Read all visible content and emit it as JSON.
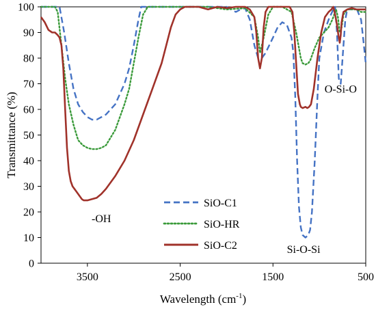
{
  "chart_data": {
    "type": "line",
    "title": "",
    "xlabel": "Wavelength (cm",
    "xlabel_sup": "-1",
    "xlabel_close": ")",
    "ylabel": "Transmittance (%)",
    "xlim": [
      4000,
      500
    ],
    "ylim": [
      0,
      100
    ],
    "x_reversed": true,
    "grid": false,
    "x_ticks": [
      3500,
      2500,
      1500,
      500
    ],
    "y_ticks": [
      0,
      10,
      20,
      30,
      40,
      50,
      60,
      70,
      80,
      90,
      100
    ],
    "legend_position": "center",
    "series": [
      {
        "name": "SiO-C1",
        "color": "#4472C4",
        "style": "dashed",
        "points": [
          [
            4000,
            100
          ],
          [
            3900,
            100
          ],
          [
            3800,
            100
          ],
          [
            3750,
            90
          ],
          [
            3700,
            78
          ],
          [
            3650,
            68
          ],
          [
            3600,
            62
          ],
          [
            3550,
            59
          ],
          [
            3500,
            57
          ],
          [
            3450,
            56
          ],
          [
            3400,
            56
          ],
          [
            3350,
            57
          ],
          [
            3300,
            58
          ],
          [
            3200,
            62
          ],
          [
            3100,
            70
          ],
          [
            3050,
            76
          ],
          [
            3000,
            85
          ],
          [
            2950,
            95
          ],
          [
            2920,
            100
          ],
          [
            2500,
            100
          ],
          [
            2000,
            100
          ],
          [
            1900,
            98
          ],
          [
            1850,
            99
          ],
          [
            1800,
            99.5
          ],
          [
            1750,
            95
          ],
          [
            1700,
            85
          ],
          [
            1660,
            80
          ],
          [
            1620,
            80
          ],
          [
            1580,
            82
          ],
          [
            1500,
            88
          ],
          [
            1450,
            92
          ],
          [
            1400,
            94
          ],
          [
            1350,
            93
          ],
          [
            1300,
            88
          ],
          [
            1280,
            82
          ],
          [
            1260,
            65
          ],
          [
            1240,
            40
          ],
          [
            1220,
            22
          ],
          [
            1200,
            14
          ],
          [
            1180,
            11
          ],
          [
            1150,
            10
          ],
          [
            1120,
            11
          ],
          [
            1100,
            13
          ],
          [
            1080,
            20
          ],
          [
            1050,
            40
          ],
          [
            1020,
            65
          ],
          [
            1000,
            80
          ],
          [
            950,
            90
          ],
          [
            900,
            95
          ],
          [
            850,
            99
          ],
          [
            830,
            100
          ],
          [
            810,
            90
          ],
          [
            790,
            72
          ],
          [
            770,
            70
          ],
          [
            750,
            80
          ],
          [
            720,
            95
          ],
          [
            700,
            99
          ],
          [
            650,
            99
          ],
          [
            600,
            99.5
          ],
          [
            550,
            95
          ],
          [
            520,
            85
          ],
          [
            500,
            78
          ]
        ]
      },
      {
        "name": "SiO-HR",
        "color": "#3A9A3A",
        "style": "dotted",
        "points": [
          [
            4000,
            100
          ],
          [
            3850,
            100
          ],
          [
            3820,
            98
          ],
          [
            3780,
            85
          ],
          [
            3740,
            72
          ],
          [
            3700,
            62
          ],
          [
            3650,
            54
          ],
          [
            3600,
            48
          ],
          [
            3550,
            46
          ],
          [
            3500,
            45
          ],
          [
            3450,
            44.5
          ],
          [
            3400,
            44.5
          ],
          [
            3350,
            45
          ],
          [
            3300,
            46
          ],
          [
            3200,
            52
          ],
          [
            3100,
            62
          ],
          [
            3050,
            68
          ],
          [
            3000,
            78
          ],
          [
            2950,
            88
          ],
          [
            2900,
            97
          ],
          [
            2850,
            100
          ],
          [
            2500,
            100
          ],
          [
            2200,
            100
          ],
          [
            2000,
            99
          ],
          [
            1800,
            99.5
          ],
          [
            1700,
            96
          ],
          [
            1660,
            88
          ],
          [
            1640,
            82
          ],
          [
            1600,
            88
          ],
          [
            1550,
            97
          ],
          [
            1500,
            100
          ],
          [
            1400,
            100
          ],
          [
            1300,
            98
          ],
          [
            1250,
            90
          ],
          [
            1200,
            80
          ],
          [
            1180,
            78
          ],
          [
            1150,
            77.5
          ],
          [
            1120,
            78
          ],
          [
            1100,
            79
          ],
          [
            1050,
            84
          ],
          [
            1000,
            88
          ],
          [
            950,
            90
          ],
          [
            900,
            92
          ],
          [
            860,
            95
          ],
          [
            820,
            99
          ],
          [
            800,
            96
          ],
          [
            780,
            90
          ],
          [
            760,
            92
          ],
          [
            740,
            97
          ],
          [
            700,
            99
          ],
          [
            650,
            99
          ],
          [
            600,
            99
          ],
          [
            550,
            98
          ],
          [
            500,
            98
          ]
        ]
      },
      {
        "name": "SiO-C2",
        "color": "#A0322A",
        "style": "solid",
        "points": [
          [
            4000,
            96
          ],
          [
            3960,
            94
          ],
          [
            3920,
            91
          ],
          [
            3880,
            90
          ],
          [
            3850,
            90
          ],
          [
            3820,
            89
          ],
          [
            3800,
            88
          ],
          [
            3780,
            85
          ],
          [
            3760,
            76
          ],
          [
            3740,
            60
          ],
          [
            3720,
            45
          ],
          [
            3700,
            36
          ],
          [
            3680,
            32
          ],
          [
            3660,
            30
          ],
          [
            3640,
            29
          ],
          [
            3620,
            28
          ],
          [
            3600,
            27
          ],
          [
            3580,
            26
          ],
          [
            3560,
            25
          ],
          [
            3540,
            24.5
          ],
          [
            3500,
            24.5
          ],
          [
            3450,
            25
          ],
          [
            3400,
            25.5
          ],
          [
            3350,
            27
          ],
          [
            3300,
            29
          ],
          [
            3200,
            34
          ],
          [
            3100,
            40
          ],
          [
            3000,
            48
          ],
          [
            2900,
            58
          ],
          [
            2800,
            68
          ],
          [
            2700,
            78
          ],
          [
            2650,
            85
          ],
          [
            2600,
            92
          ],
          [
            2550,
            97
          ],
          [
            2500,
            99
          ],
          [
            2450,
            100
          ],
          [
            2300,
            100
          ],
          [
            2200,
            99
          ],
          [
            2100,
            100
          ],
          [
            2000,
            99.5
          ],
          [
            1900,
            100
          ],
          [
            1800,
            100
          ],
          [
            1750,
            99
          ],
          [
            1700,
            96
          ],
          [
            1680,
            90
          ],
          [
            1660,
            80
          ],
          [
            1640,
            76
          ],
          [
            1620,
            80
          ],
          [
            1600,
            92
          ],
          [
            1580,
            98
          ],
          [
            1550,
            100
          ],
          [
            1400,
            100
          ],
          [
            1320,
            100
          ],
          [
            1290,
            98
          ],
          [
            1270,
            90
          ],
          [
            1250,
            78
          ],
          [
            1230,
            66
          ],
          [
            1210,
            62
          ],
          [
            1200,
            61
          ],
          [
            1180,
            60.5
          ],
          [
            1150,
            61
          ],
          [
            1130,
            60.5
          ],
          [
            1110,
            61
          ],
          [
            1090,
            62
          ],
          [
            1060,
            68
          ],
          [
            1020,
            80
          ],
          [
            980,
            90
          ],
          [
            940,
            96
          ],
          [
            900,
            98
          ],
          [
            870,
            99
          ],
          [
            850,
            100
          ],
          [
            830,
            97
          ],
          [
            810,
            93
          ],
          [
            795,
            89
          ],
          [
            780,
            86
          ],
          [
            770,
            89
          ],
          [
            760,
            94
          ],
          [
            740,
            98
          ],
          [
            700,
            99
          ],
          [
            650,
            99.5
          ],
          [
            600,
            99
          ],
          [
            550,
            99
          ],
          [
            500,
            99
          ]
        ]
      }
    ],
    "annotations": [
      {
        "text": "-OH",
        "x": 3350,
        "y": 16
      },
      {
        "text": "Si-O-Si",
        "x": 1170,
        "y": 4
      },
      {
        "text": "O-Si-O",
        "x": 770,
        "y": 66.5
      }
    ]
  }
}
